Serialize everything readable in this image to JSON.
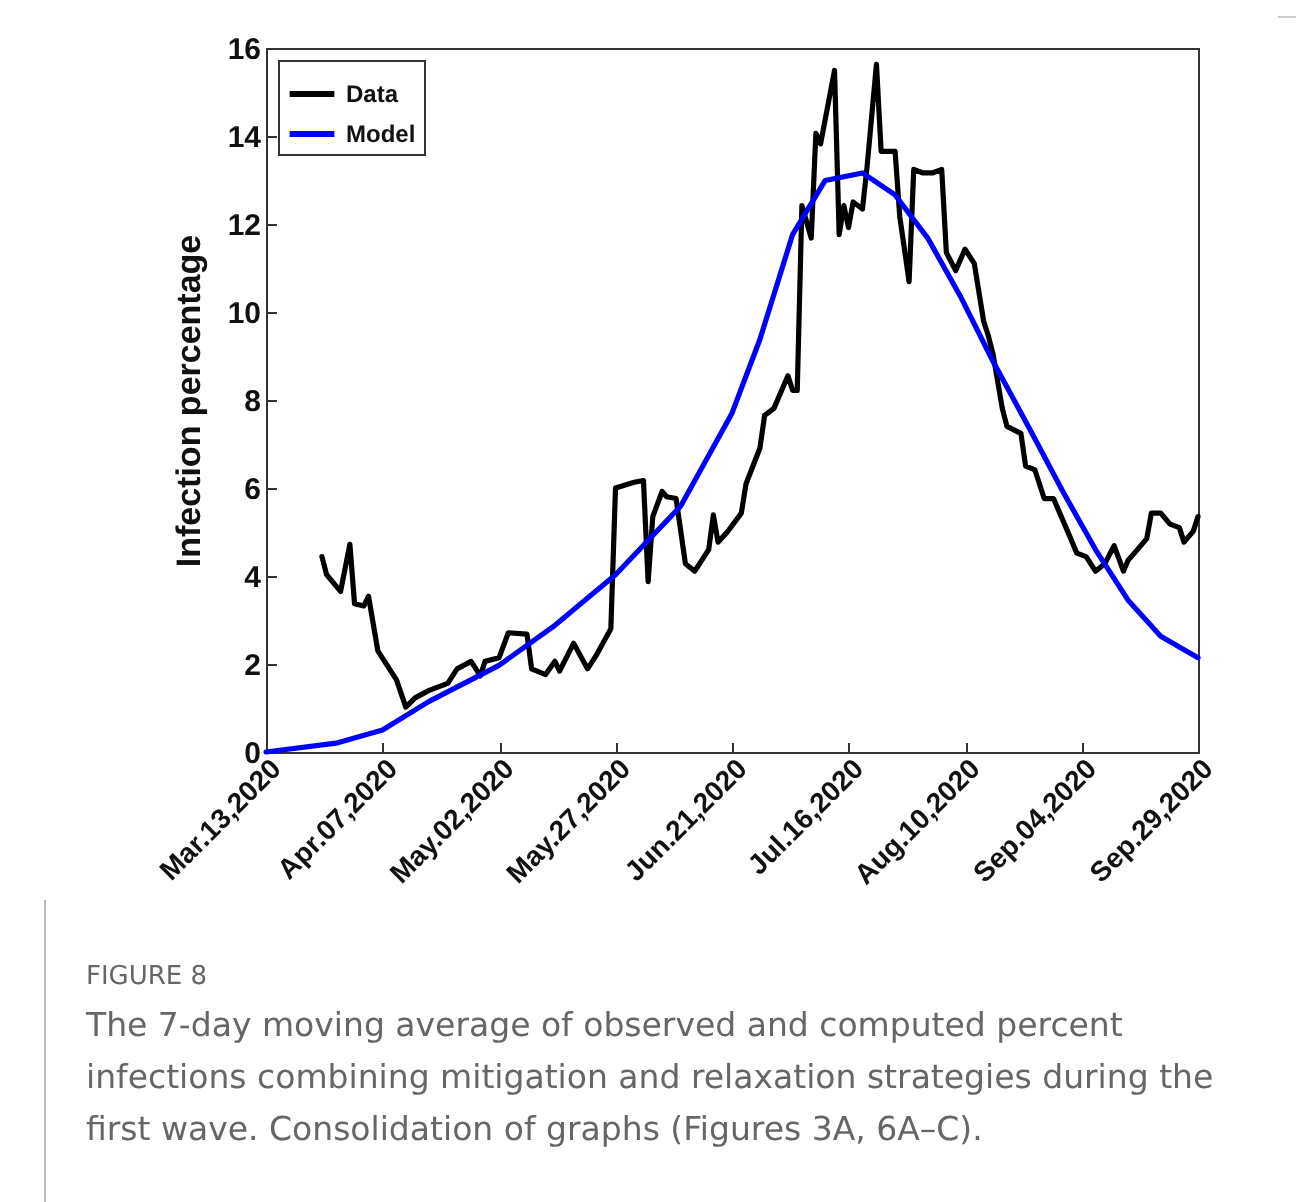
{
  "chart_data": {
    "type": "line",
    "ylabel": "Infection percentage",
    "ylim": [
      0,
      16
    ],
    "yticks": [
      0,
      2,
      4,
      6,
      8,
      10,
      12,
      14,
      16
    ],
    "xlim": [
      "2020-03-13",
      "2020-09-29"
    ],
    "xticks": [
      {
        "value": "2020-03-13",
        "label": "Mar.13,2020"
      },
      {
        "value": "2020-04-07",
        "label": "Apr.07,2020"
      },
      {
        "value": "2020-05-02",
        "label": "May.02,2020"
      },
      {
        "value": "2020-05-27",
        "label": "May.27,2020"
      },
      {
        "value": "2020-06-21",
        "label": "Jun.21,2020"
      },
      {
        "value": "2020-07-16",
        "label": "Jul.16,2020"
      },
      {
        "value": "2020-08-10",
        "label": "Aug.10,2020"
      },
      {
        "value": "2020-09-04",
        "label": "Sep.04,2020"
      },
      {
        "value": "2020-09-29",
        "label": "Sep.29,2020"
      }
    ],
    "grid": false,
    "legend": "top left",
    "marker": "none",
    "line_style": "solid",
    "series": [
      {
        "name": "Data",
        "color": "#000000",
        "x": [
          "2020-03-25",
          "2020-03-26",
          "2020-03-29",
          "2020-03-31",
          "2020-04-01",
          "2020-04-03",
          "2020-04-04",
          "2020-04-06",
          "2020-04-08",
          "2020-04-10",
          "2020-04-12",
          "2020-04-14",
          "2020-04-17",
          "2020-04-21",
          "2020-04-23",
          "2020-04-26",
          "2020-04-28",
          "2020-04-29",
          "2020-05-02",
          "2020-05-04",
          "2020-05-08",
          "2020-05-09",
          "2020-05-12",
          "2020-05-14",
          "2020-05-15",
          "2020-05-18",
          "2020-05-21",
          "2020-05-23",
          "2020-05-26",
          "2020-05-27",
          "2020-05-31",
          "2020-06-02",
          "2020-06-03",
          "2020-06-04",
          "2020-06-06",
          "2020-06-07",
          "2020-06-09",
          "2020-06-11",
          "2020-06-13",
          "2020-06-16",
          "2020-06-17",
          "2020-06-18",
          "2020-06-20",
          "2020-06-23",
          "2020-06-24",
          "2020-06-27",
          "2020-06-28",
          "2020-06-30",
          "2020-07-03",
          "2020-07-04",
          "2020-07-05",
          "2020-07-06",
          "2020-07-08",
          "2020-07-09",
          "2020-07-10",
          "2020-07-13",
          "2020-07-14",
          "2020-07-15",
          "2020-07-16",
          "2020-07-17",
          "2020-07-19",
          "2020-07-20",
          "2020-07-22",
          "2020-07-23",
          "2020-07-26",
          "2020-07-27",
          "2020-07-29",
          "2020-07-30",
          "2020-08-01",
          "2020-08-03",
          "2020-08-05",
          "2020-08-06",
          "2020-08-08",
          "2020-08-10",
          "2020-08-12",
          "2020-08-14",
          "2020-08-15",
          "2020-08-16",
          "2020-08-18",
          "2020-08-19",
          "2020-08-22",
          "2020-08-23",
          "2020-08-25",
          "2020-08-27",
          "2020-08-29",
          "2020-09-01",
          "2020-09-03",
          "2020-09-05",
          "2020-09-07",
          "2020-09-09",
          "2020-09-11",
          "2020-09-13",
          "2020-09-14",
          "2020-09-16",
          "2020-09-18",
          "2020-09-19",
          "2020-09-21",
          "2020-09-23",
          "2020-09-25",
          "2020-09-26",
          "2020-09-28",
          "2020-09-29"
        ],
        "values": [
          4.44,
          4.03,
          3.65,
          4.72,
          3.37,
          3.32,
          3.54,
          2.3,
          1.97,
          1.64,
          1.02,
          1.23,
          1.4,
          1.56,
          1.89,
          2.06,
          1.73,
          2.06,
          2.14,
          2.71,
          2.68,
          1.89,
          1.76,
          2.06,
          1.84,
          2.47,
          1.89,
          2.22,
          2.8,
          6.0,
          6.13,
          6.17,
          3.87,
          5.35,
          5.92,
          5.8,
          5.76,
          4.28,
          4.11,
          4.6,
          5.39,
          4.77,
          5.0,
          5.43,
          6.09,
          6.91,
          7.65,
          7.81,
          8.55,
          8.22,
          8.22,
          12.42,
          11.68,
          14.06,
          13.82,
          15.49,
          11.76,
          12.42,
          11.92,
          12.5,
          12.34,
          13.32,
          15.63,
          13.65,
          13.65,
          12.17,
          10.69,
          13.24,
          13.16,
          13.16,
          13.24,
          11.35,
          10.94,
          11.43,
          11.1,
          9.79,
          9.46,
          9.05,
          7.81,
          7.4,
          7.24,
          6.5,
          6.41,
          5.76,
          5.76,
          5.02,
          4.52,
          4.44,
          4.11,
          4.28,
          4.69,
          4.11,
          4.36,
          4.6,
          4.85,
          5.43,
          5.43,
          5.18,
          5.1,
          4.77,
          5.02,
          5.35
        ]
      },
      {
        "name": "Model",
        "color": "#0000ff",
        "x": [
          "2020-03-13",
          "2020-03-28",
          "2020-04-07",
          "2020-04-17",
          "2020-05-02",
          "2020-05-14",
          "2020-05-27",
          "2020-06-10",
          "2020-06-21",
          "2020-06-27",
          "2020-07-04",
          "2020-07-11",
          "2020-07-19",
          "2020-07-26",
          "2020-08-02",
          "2020-08-09",
          "2020-08-16",
          "2020-08-24",
          "2020-08-31",
          "2020-09-07",
          "2020-09-14",
          "2020-09-21",
          "2020-09-29"
        ],
        "values": [
          0,
          0.2,
          0.5,
          1.15,
          1.97,
          2.88,
          4.03,
          5.59,
          7.7,
          9.38,
          11.76,
          12.99,
          13.16,
          12.66,
          11.68,
          10.36,
          8.88,
          7.32,
          5.92,
          4.6,
          3.45,
          2.63,
          2.14
        ]
      }
    ],
    "annotations": [
      "FIGURE 8",
      "The 7-day moving average of observed and computed percent infections combining mitigation and relaxation strategies during the first wave. Consolidation of graphs (Figures 3A, 6A–C)."
    ]
  }
}
